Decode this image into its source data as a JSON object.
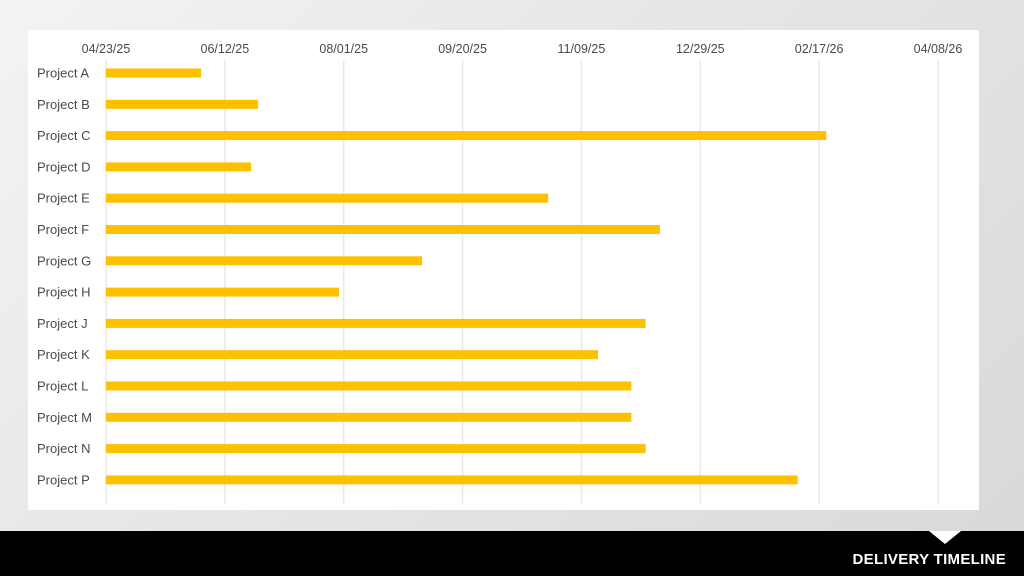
{
  "footer": {
    "title": "DELIVERY TIMELINE"
  },
  "colors": {
    "bar": "#FFC000",
    "grid": "#e9e9e9",
    "footer_bg": "#000000"
  },
  "chart_data": {
    "type": "bar",
    "orientation": "horizontal",
    "title": "",
    "xlabel": "",
    "ylabel": "",
    "x_axis_position": "top",
    "grid": true,
    "xlim": [
      "2025-04-23",
      "2026-04-08"
    ],
    "x_ticks": [
      "04/23/25",
      "06/12/25",
      "08/01/25",
      "09/20/25",
      "11/09/25",
      "12/29/25",
      "02/17/26",
      "04/08/26"
    ],
    "start_date": "2025-04-23",
    "categories": [
      "Project A",
      "Project B",
      "Project C",
      "Project D",
      "Project E",
      "Project F",
      "Project G",
      "Project H",
      "Project J",
      "Project K",
      "Project L",
      "Project M",
      "Project N",
      "Project P"
    ],
    "end_dates": [
      "2025-06-02",
      "2025-06-26",
      "2026-02-20",
      "2025-06-23",
      "2025-10-26",
      "2025-12-12",
      "2025-09-03",
      "2025-07-30",
      "2025-12-06",
      "2025-11-16",
      "2025-11-30",
      "2025-11-30",
      "2025-12-06",
      "2026-02-08"
    ]
  }
}
